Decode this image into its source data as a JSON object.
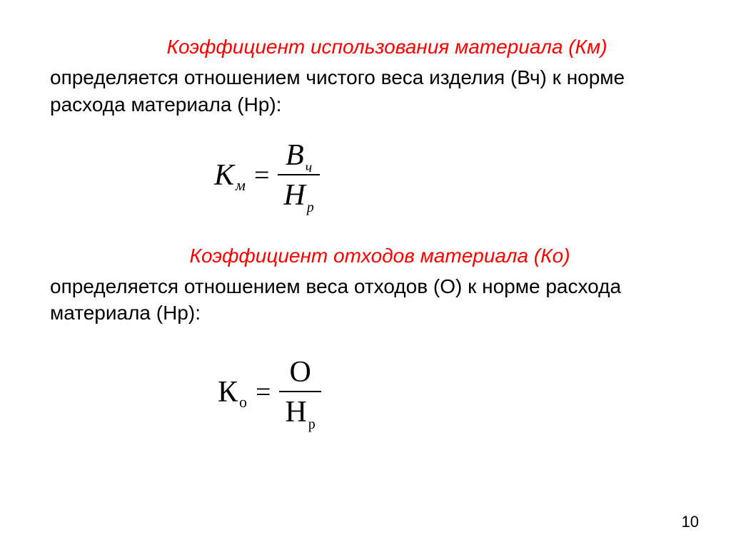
{
  "section1": {
    "heading": "Коэффициент использования материала (Км)",
    "body": "определяется отношением чистого веса изделия (Вч) к норме расхода материала (Нр):",
    "formula": {
      "lhs_main": "К",
      "lhs_sub": "м",
      "equals": "=",
      "num_main": "В",
      "num_sub": "ч",
      "den_main": "Н",
      "den_sub": "р"
    }
  },
  "section2": {
    "heading": "Коэффициент отходов материала (Ко)",
    "body": "определяется отношением веса отходов (О) к норме расхода материала (Нр):",
    "formula": {
      "lhs_main": "К",
      "lhs_sub": "о",
      "equals": "=",
      "num_main": "О",
      "den_main": "Н",
      "den_sub": "р"
    }
  },
  "page_number": "10",
  "colors": {
    "heading": "#ff0000",
    "body": "#000000",
    "background": "#ffffff"
  },
  "typography": {
    "heading_fontsize": 28,
    "body_fontsize": 28,
    "formula_fontsize": 42,
    "subscript_fontsize": 20,
    "heading_style": "italic",
    "page_num_fontsize": 22
  }
}
